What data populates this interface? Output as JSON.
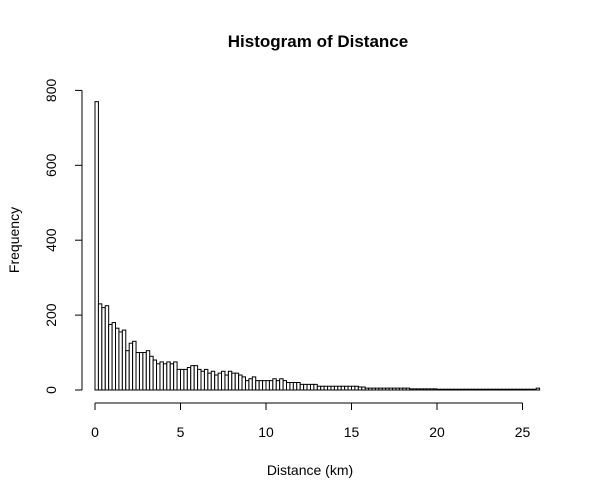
{
  "chart_data": {
    "type": "bar",
    "title": "Histogram of Distance",
    "xlabel": "Distance (km)",
    "ylabel": "Frequency",
    "xlim": [
      0,
      26
    ],
    "ylim": [
      0,
      800
    ],
    "bin_width": 0.2,
    "xticks": [
      "0",
      "5",
      "10",
      "15",
      "20",
      "25"
    ],
    "yticks": [
      "0",
      "200",
      "400",
      "600",
      "800"
    ],
    "grid": false,
    "legend": "none",
    "bar_fill": "#ffffff",
    "bar_stroke": "#000000",
    "values": [
      770,
      230,
      220,
      225,
      175,
      180,
      165,
      155,
      160,
      105,
      125,
      130,
      100,
      100,
      100,
      105,
      90,
      80,
      70,
      75,
      70,
      75,
      70,
      75,
      55,
      55,
      55,
      60,
      65,
      65,
      55,
      50,
      55,
      45,
      50,
      40,
      45,
      50,
      40,
      50,
      45,
      45,
      40,
      35,
      25,
      30,
      35,
      25,
      25,
      25,
      25,
      25,
      30,
      25,
      30,
      25,
      20,
      20,
      20,
      20,
      15,
      15,
      15,
      15,
      15,
      10,
      10,
      10,
      10,
      10,
      10,
      10,
      10,
      10,
      10,
      10,
      10,
      8,
      8,
      5,
      5,
      5,
      5,
      5,
      5,
      5,
      5,
      5,
      5,
      5,
      5,
      5,
      3,
      3,
      3,
      3,
      3,
      3,
      3,
      3,
      2,
      2,
      2,
      2,
      2,
      2,
      2,
      2,
      2,
      2,
      2,
      2,
      2,
      2,
      2,
      2,
      2,
      2,
      2,
      2,
      2,
      2,
      2,
      2,
      2,
      2,
      2,
      2,
      2,
      5
    ]
  }
}
